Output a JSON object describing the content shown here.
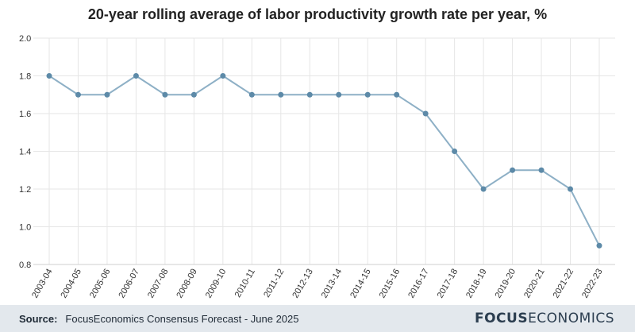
{
  "chart_data": {
    "type": "line",
    "title": "20-year rolling average of labor productivity growth rate per year, %",
    "categories": [
      "2003-04",
      "2004-05",
      "2005-06",
      "2006-07",
      "2007-08",
      "2008-09",
      "2009-10",
      "2010-11",
      "2011-12",
      "2012-13",
      "2013-14",
      "2014-15",
      "2015-16",
      "2016-17",
      "2017-18",
      "2018-19",
      "2019-20",
      "2020-21",
      "2021-22",
      "2022-23"
    ],
    "values": [
      1.8,
      1.7,
      1.7,
      1.8,
      1.7,
      1.7,
      1.8,
      1.7,
      1.7,
      1.7,
      1.7,
      1.7,
      1.7,
      1.6,
      1.4,
      1.2,
      1.3,
      1.3,
      1.2,
      0.9
    ],
    "yticks": [
      "0.8",
      "1.0",
      "1.2",
      "1.4",
      "1.6",
      "1.8",
      "2.0"
    ],
    "ylim": [
      0.8,
      2.0
    ],
    "grid": true,
    "line_color": "#8eb0c6",
    "marker_color": "#5d8aa8"
  },
  "footer": {
    "source_label": "Source:",
    "source_text": "FocusEconomics Consensus Forecast - June 2025",
    "logo_bold": "FOCUS",
    "logo_light": "ECONOMICS"
  }
}
